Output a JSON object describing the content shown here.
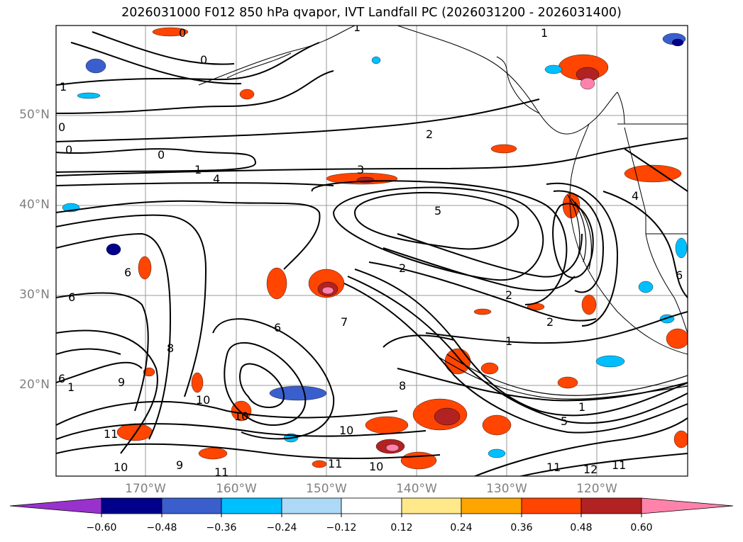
{
  "title": "2026031000 F012 850 hPa qvapor, IVT Landfall PC (2026031200 - 2026031400)",
  "lat_labels": [
    "50°N",
    "40°N",
    "30°N",
    "20°N"
  ],
  "lon_labels": [
    "170°W",
    "160°W",
    "150°W",
    "140°W",
    "130°W",
    "120°W"
  ],
  "colorbar": {
    "ticks": [
      "−0.60",
      "−0.48",
      "−0.36",
      "−0.24",
      "−0.12",
      "0.12",
      "0.24",
      "0.36",
      "0.48",
      "0.60"
    ],
    "colors": [
      "#9932cc",
      "#00008b",
      "#3a5fcd",
      "#00bfff",
      "#add8f6",
      "#ffffff",
      "#ffe88a",
      "#ffa500",
      "#ff4500",
      "#b22222",
      "#ff82ab"
    ],
    "extend": "both"
  },
  "contour_labels": [
    "0",
    "0",
    "0",
    "0",
    "0",
    "1",
    "1",
    "1",
    "1",
    "1",
    "1",
    "2",
    "2",
    "2",
    "2",
    "3",
    "4",
    "5",
    "6",
    "6",
    "6",
    "6",
    "7",
    "8",
    "8",
    "9",
    "9",
    "10",
    "10",
    "10",
    "10",
    "10",
    "11",
    "11",
    "11",
    "11",
    "11",
    "12",
    "4",
    "1",
    "5",
    "6"
  ],
  "colors": {
    "contour": "#000000",
    "grid": "#999999",
    "coast": "#000000"
  }
}
